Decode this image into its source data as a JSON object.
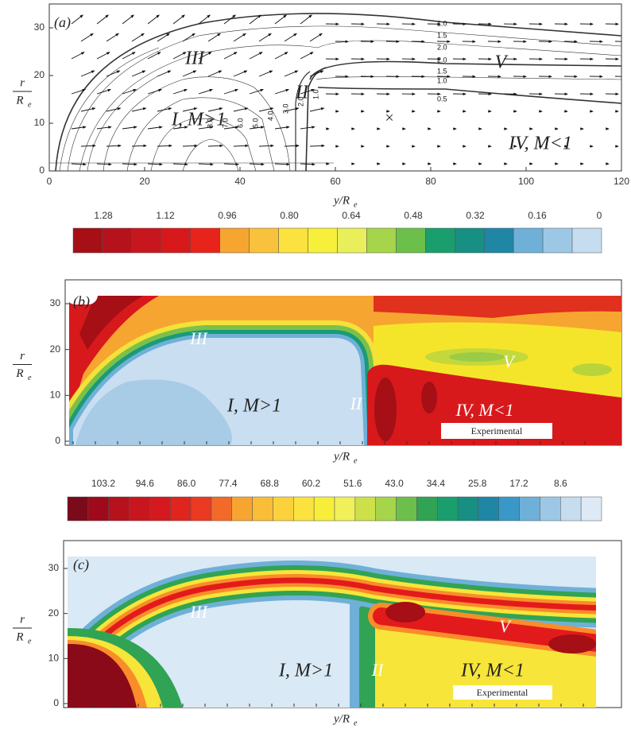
{
  "panel_a": {
    "label": "(a)",
    "region_III": "III",
    "region_II": "II",
    "region_I": "I, M>1",
    "region_V": "V",
    "region_IV": "IV, M<1",
    "marker": "×",
    "contour_labels_top": [
      "1.0",
      "1.5",
      "2.0",
      "2.0",
      "1.5",
      "1.0",
      "0.5"
    ],
    "contour_labels_left": [
      "1.0",
      "2.0",
      "3.0",
      "4.0",
      "5.0",
      "6.0",
      "7.0",
      "8.0"
    ],
    "xticks": [
      0,
      20,
      40,
      60,
      80,
      100,
      120
    ],
    "yticks": [
      0,
      10,
      20,
      30
    ],
    "xlabel": {
      "text": "y/R",
      "sub": "e"
    },
    "ylabel": {
      "num": "r",
      "den": "R",
      "sub": "e"
    }
  },
  "colorbar_1": {
    "labels": [
      "1.28",
      "1.12",
      "0.96",
      "0.80",
      "0.64",
      "0.48",
      "0.32",
      "0.16",
      "0"
    ]
  },
  "panel_b": {
    "label": "(b)",
    "region_III": "III",
    "region_II": "II",
    "region_I": "I, M>1",
    "region_V": "V",
    "region_IV": "IV, M<1",
    "note": "Experimental",
    "yticks": [
      0,
      10,
      20,
      30
    ],
    "xlabel": {
      "text": "y/R",
      "sub": "e"
    },
    "ylabel": {
      "num": "r",
      "den": "R",
      "sub": "e"
    }
  },
  "colorbar_2": {
    "labels": [
      "103.2",
      "94.6",
      "86.0",
      "77.4",
      "68.8",
      "60.2",
      "51.6",
      "43.0",
      "34.4",
      "25.8",
      "17.2",
      "8.6"
    ]
  },
  "panel_c": {
    "label": "(c)",
    "region_III": "III",
    "region_II": "II",
    "region_I": "I, M>1",
    "region_V": "V",
    "region_IV": "IV, M<1",
    "note": "Experimental",
    "yticks": [
      0,
      10,
      20,
      30
    ],
    "xlabel": {
      "text": "y/R",
      "sub": "e"
    },
    "ylabel": {
      "num": "r",
      "den": "R",
      "sub": "e"
    }
  }
}
